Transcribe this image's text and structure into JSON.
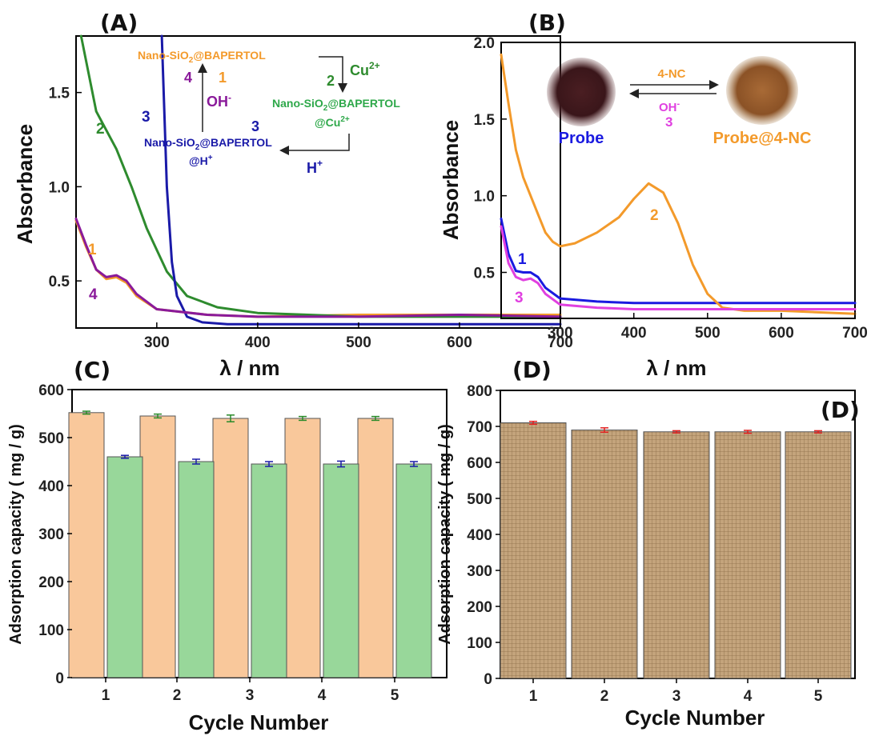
{
  "chart_data": [
    {
      "panel": "(A)",
      "type": "line",
      "xlabel": "λ / nm",
      "ylabel": "Absorbance",
      "xlim": [
        220,
        700
      ],
      "ylim": [
        0.25,
        1.8
      ],
      "xticks": [
        300,
        400,
        500,
        600,
        700
      ],
      "yticks": [
        0.5,
        1.0,
        1.5
      ],
      "series": [
        {
          "name": "1",
          "color": "#f39a2b",
          "x": [
            220,
            230,
            240,
            250,
            260,
            270,
            280,
            300,
            350,
            400,
            500,
            600,
            700
          ],
          "y": [
            0.82,
            0.68,
            0.56,
            0.51,
            0.52,
            0.49,
            0.42,
            0.35,
            0.32,
            0.31,
            0.32,
            0.32,
            0.32
          ]
        },
        {
          "name": "2",
          "color": "#2e8b2e",
          "x": [
            225,
            240,
            260,
            275,
            290,
            310,
            330,
            360,
            400,
            450,
            500,
            600,
            700
          ],
          "y": [
            1.8,
            1.4,
            1.2,
            1.0,
            0.78,
            0.55,
            0.42,
            0.36,
            0.33,
            0.32,
            0.31,
            0.31,
            0.31
          ]
        },
        {
          "name": "3",
          "color": "#1a1aa8",
          "x": [
            305,
            310,
            315,
            320,
            330,
            345,
            370,
            450,
            700
          ],
          "y": [
            1.8,
            1.0,
            0.6,
            0.42,
            0.31,
            0.28,
            0.27,
            0.27,
            0.27
          ]
        },
        {
          "name": "4",
          "color": "#8a1a9a",
          "x": [
            220,
            230,
            240,
            250,
            260,
            270,
            280,
            300,
            350,
            400,
            500,
            600,
            700
          ],
          "y": [
            0.83,
            0.69,
            0.56,
            0.52,
            0.53,
            0.5,
            0.43,
            0.35,
            0.32,
            0.31,
            0.31,
            0.32,
            0.31
          ]
        }
      ]
    },
    {
      "panel": "(B)",
      "type": "line",
      "xlabel": "λ / nm",
      "ylabel": "Absorbance",
      "xlim": [
        220,
        700
      ],
      "ylim": [
        0.2,
        2.0
      ],
      "xticks": [
        300,
        400,
        500,
        600,
        700
      ],
      "yticks": [
        0.5,
        1.0,
        1.5,
        2.0
      ],
      "series": [
        {
          "name": "1",
          "color": "#1a1ae0",
          "x": [
            220,
            230,
            240,
            250,
            260,
            270,
            280,
            300,
            350,
            400,
            500,
            600,
            700
          ],
          "y": [
            0.85,
            0.62,
            0.51,
            0.5,
            0.5,
            0.47,
            0.4,
            0.33,
            0.31,
            0.3,
            0.3,
            0.3,
            0.3
          ]
        },
        {
          "name": "2",
          "color": "#f39a2b",
          "x": [
            220,
            230,
            240,
            250,
            260,
            270,
            280,
            290,
            300,
            320,
            350,
            380,
            400,
            420,
            440,
            460,
            480,
            500,
            520,
            550,
            600,
            700
          ],
          "y": [
            1.92,
            1.6,
            1.3,
            1.12,
            1.0,
            0.88,
            0.76,
            0.7,
            0.67,
            0.69,
            0.76,
            0.86,
            0.98,
            1.08,
            1.02,
            0.82,
            0.55,
            0.36,
            0.27,
            0.25,
            0.25,
            0.23
          ]
        },
        {
          "name": "3",
          "color": "#e040e0",
          "x": [
            220,
            230,
            240,
            250,
            260,
            270,
            280,
            300,
            350,
            400,
            500,
            600,
            700
          ],
          "y": [
            0.8,
            0.56,
            0.47,
            0.45,
            0.46,
            0.43,
            0.36,
            0.29,
            0.27,
            0.26,
            0.26,
            0.26,
            0.26
          ]
        }
      ]
    },
    {
      "panel": "(C)",
      "type": "bar",
      "xlabel": "Cycle Number",
      "ylabel": "Adsorption capacity ( mg / g)",
      "categories": [
        "1",
        "2",
        "3",
        "4",
        "5"
      ],
      "ylim": [
        0,
        600
      ],
      "yticks": [
        0,
        100,
        200,
        300,
        400,
        500,
        600
      ],
      "series": [
        {
          "color": "#f9c89b",
          "err_color": "#2a8a2a",
          "values": [
            552,
            545,
            540,
            540,
            540
          ],
          "errors": [
            3,
            4,
            7,
            4,
            4
          ]
        },
        {
          "color": "#98d79a",
          "err_color": "#1a1aa8",
          "values": [
            460,
            450,
            445,
            445,
            445
          ],
          "errors": [
            3,
            5,
            5,
            6,
            5
          ]
        }
      ]
    },
    {
      "panel": "(D)",
      "type": "bar",
      "xlabel": "Cycle Number",
      "ylabel": "Adsorption capacity ( mg / g)",
      "categories": [
        "1",
        "2",
        "3",
        "4",
        "5"
      ],
      "ylim": [
        0,
        800
      ],
      "yticks": [
        0,
        100,
        200,
        300,
        400,
        500,
        600,
        700,
        800
      ],
      "series": [
        {
          "color": "#c4a47c",
          "err_color": "#e02020",
          "values": [
            710,
            690,
            685,
            685,
            685
          ],
          "errors": [
            4,
            6,
            3,
            4,
            3
          ]
        }
      ]
    }
  ],
  "labels": {
    "panel_a": "(A)",
    "panel_b": "(B)",
    "panel_c": "(C)",
    "panel_d": "(D)",
    "panel_d_inner": "(D)"
  },
  "annotations_a": {
    "scheme_top": "Nano-SiO",
    "scheme_top_sub": "2",
    "scheme_top_rest": "@BAPERTOL",
    "num_4": "4",
    "num_1": "1",
    "oh": "OH",
    "oh_sup": "-",
    "cu": "Cu",
    "cu_sup": "2+",
    "num_2": "2",
    "right_line1": "Nano-SiO",
    "right_sub": "2",
    "right_rest": "@BAPERTOL",
    "right_line2": "@Cu",
    "right_line2_sup": "2+",
    "num_3": "3",
    "left_line1": "Nano-SiO",
    "left_sub": "2",
    "left_rest": "@BAPERTOL",
    "left_line2": "@H",
    "left_line2_sup": "+",
    "h": "H",
    "h_sup": "+",
    "curve_1": "1",
    "curve_2": "2",
    "curve_3": "3",
    "curve_4": "4"
  },
  "annotations_b": {
    "arrow_top": "4-NC",
    "arrow_bottom": "OH",
    "arrow_bottom_sup": "-",
    "arrow_num": "3",
    "probe": "Probe",
    "probe_nc": "Probe@4-NC",
    "curve_1": "1",
    "curve_2": "2",
    "curve_3": "3"
  }
}
